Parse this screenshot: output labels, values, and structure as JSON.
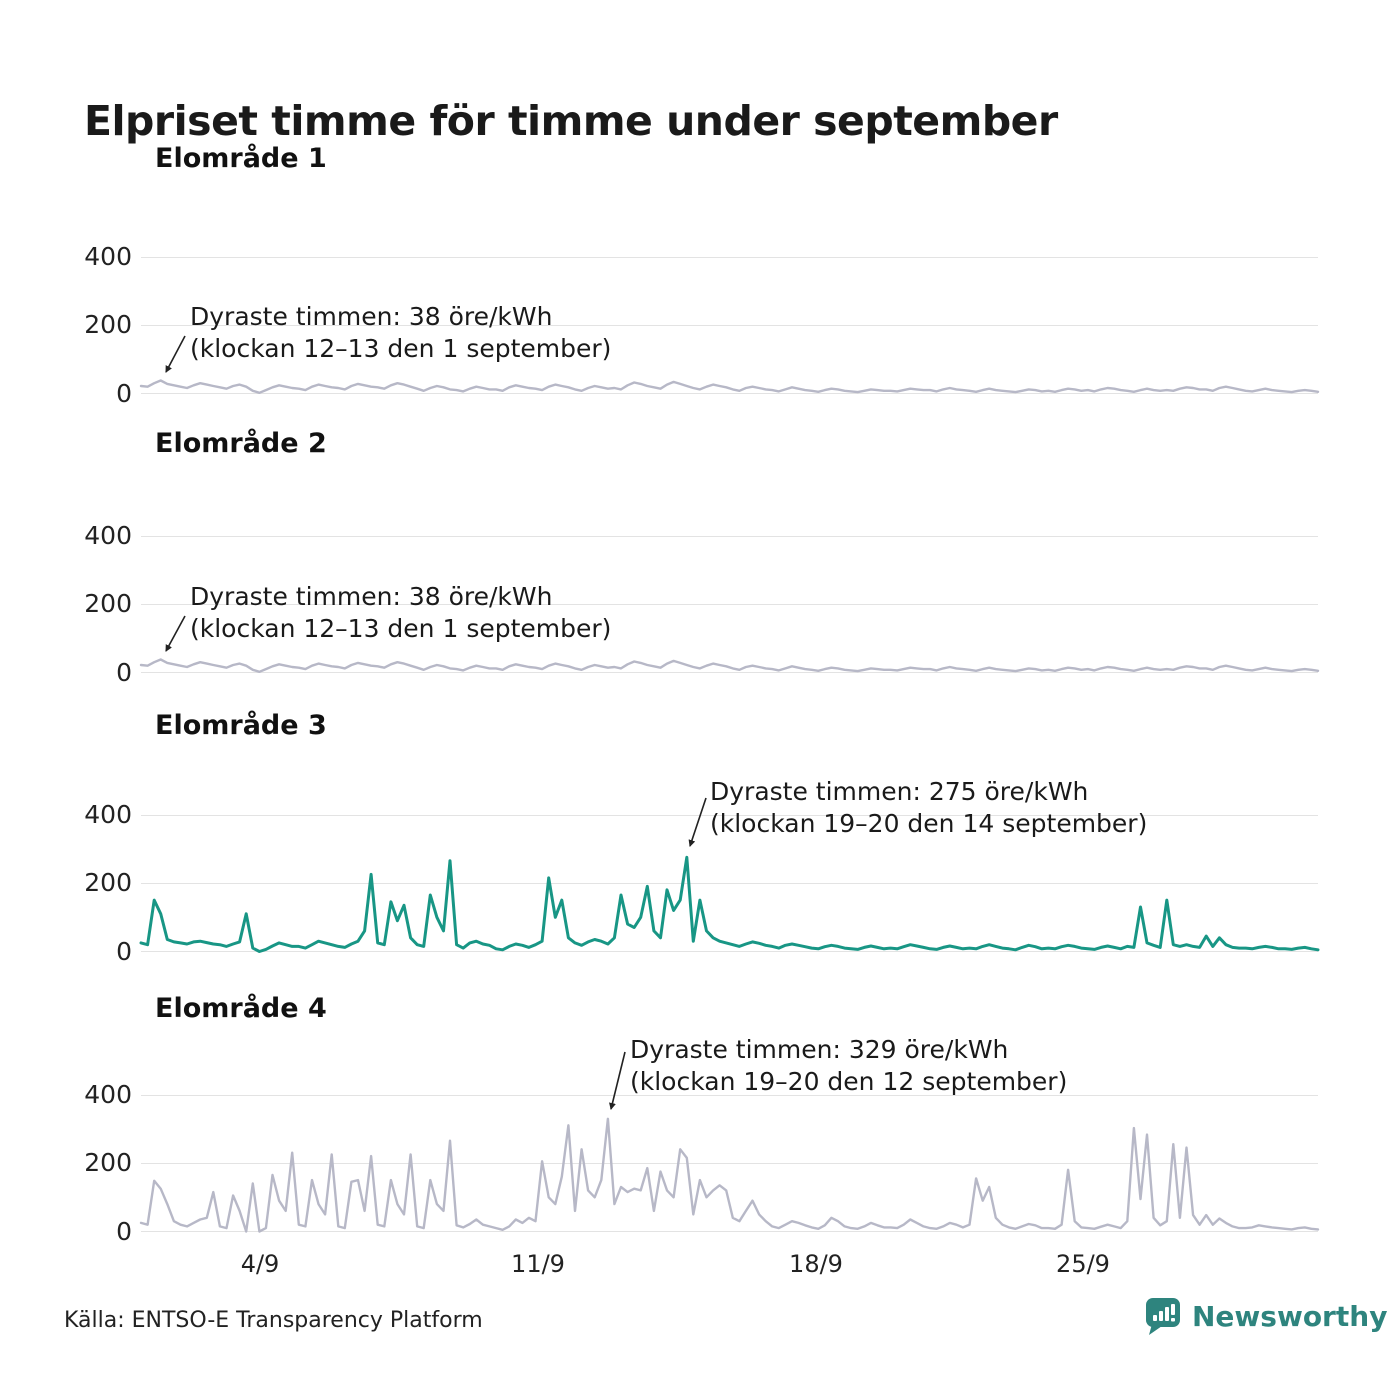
{
  "title": "Elpriset timme för timme under september",
  "source": "Källa: ENTSO-E Transparency Platform",
  "brand": {
    "name": "Newsworthy",
    "color": "#2e847e"
  },
  "colors": {
    "muted_line": "#b7b8c7",
    "highlight_line": "#189685",
    "gridline": "#e3e3e3",
    "text": "#1a1a1a"
  },
  "axis": {
    "y_tick_labels": [
      "0",
      "200",
      "400"
    ],
    "x_tick_labels": [
      "4/9",
      "11/9",
      "18/9",
      "25/9"
    ]
  },
  "chart_data": [
    {
      "type": "line",
      "title": "Elområde 1",
      "color": "#b7b8c7",
      "unit": "öre/kWh",
      "x_range": "1–30 september, hourly",
      "x_tick_labels": [
        "4/9",
        "11/9",
        "18/9",
        "25/9"
      ],
      "y_ticks": [
        0,
        200,
        400
      ],
      "ylim": [
        0,
        480
      ],
      "grid": true,
      "max": {
        "value_ore_kwh": 38,
        "time": "klockan 12–13 den 1 september"
      },
      "annotation": {
        "line1": "Dyraste timmen: 38 öre/kWh",
        "line2": "(klockan 12–13 den 1 september)"
      },
      "points_per_day": 6,
      "values": [
        22,
        20,
        30,
        38,
        28,
        24,
        20,
        16,
        24,
        30,
        26,
        22,
        18,
        14,
        22,
        26,
        20,
        8,
        2,
        10,
        18,
        24,
        20,
        16,
        14,
        10,
        20,
        26,
        22,
        18,
        16,
        12,
        22,
        28,
        24,
        20,
        18,
        14,
        24,
        30,
        26,
        20,
        14,
        8,
        16,
        22,
        18,
        12,
        10,
        6,
        14,
        20,
        16,
        12,
        12,
        8,
        18,
        24,
        20,
        16,
        14,
        10,
        20,
        26,
        22,
        18,
        12,
        8,
        16,
        22,
        18,
        14,
        16,
        12,
        24,
        32,
        28,
        22,
        18,
        14,
        26,
        34,
        28,
        22,
        16,
        12,
        20,
        26,
        22,
        18,
        12,
        8,
        16,
        20,
        16,
        12,
        10,
        6,
        12,
        18,
        14,
        10,
        8,
        5,
        10,
        14,
        12,
        8,
        6,
        4,
        8,
        12,
        10,
        8,
        8,
        6,
        10,
        14,
        12,
        10,
        10,
        6,
        12,
        16,
        12,
        10,
        8,
        5,
        10,
        14,
        10,
        8,
        6,
        4,
        8,
        12,
        10,
        6,
        8,
        5,
        10,
        14,
        12,
        8,
        10,
        6,
        12,
        16,
        14,
        10,
        8,
        5,
        10,
        14,
        10,
        8,
        10,
        8,
        14,
        18,
        16,
        12,
        12,
        8,
        16,
        20,
        16,
        12,
        8,
        6,
        10,
        14,
        10,
        8,
        6,
        4,
        8,
        10,
        8,
        5
      ]
    },
    {
      "type": "line",
      "title": "Elområde 2",
      "color": "#b7b8c7",
      "unit": "öre/kWh",
      "x_range": "1–30 september, hourly",
      "x_tick_labels": [
        "4/9",
        "11/9",
        "18/9",
        "25/9"
      ],
      "y_ticks": [
        0,
        200,
        400
      ],
      "ylim": [
        0,
        480
      ],
      "grid": true,
      "max": {
        "value_ore_kwh": 38,
        "time": "klockan 12–13 den 1 september"
      },
      "annotation": {
        "line1": "Dyraste timmen: 38 öre/kWh",
        "line2": "(klockan 12–13 den 1 september)"
      },
      "points_per_day": 6,
      "values": [
        22,
        20,
        30,
        38,
        28,
        24,
        20,
        16,
        24,
        30,
        26,
        22,
        18,
        14,
        22,
        26,
        20,
        8,
        2,
        10,
        18,
        24,
        20,
        16,
        14,
        10,
        20,
        26,
        22,
        18,
        16,
        12,
        22,
        28,
        24,
        20,
        18,
        14,
        24,
        30,
        26,
        20,
        14,
        8,
        16,
        22,
        18,
        12,
        10,
        6,
        14,
        20,
        16,
        12,
        12,
        8,
        18,
        24,
        20,
        16,
        14,
        10,
        20,
        26,
        22,
        18,
        12,
        8,
        16,
        22,
        18,
        14,
        16,
        12,
        24,
        32,
        28,
        22,
        18,
        14,
        26,
        34,
        28,
        22,
        16,
        12,
        20,
        26,
        22,
        18,
        12,
        8,
        16,
        20,
        16,
        12,
        10,
        6,
        12,
        18,
        14,
        10,
        8,
        5,
        10,
        14,
        12,
        8,
        6,
        4,
        8,
        12,
        10,
        8,
        8,
        6,
        10,
        14,
        12,
        10,
        10,
        6,
        12,
        16,
        12,
        10,
        8,
        5,
        10,
        14,
        10,
        8,
        6,
        4,
        8,
        12,
        10,
        6,
        8,
        5,
        10,
        14,
        12,
        8,
        10,
        6,
        12,
        16,
        14,
        10,
        8,
        5,
        10,
        14,
        10,
        8,
        10,
        8,
        14,
        18,
        16,
        12,
        12,
        8,
        16,
        20,
        16,
        12,
        8,
        6,
        10,
        14,
        10,
        8,
        6,
        4,
        8,
        10,
        8,
        5
      ]
    },
    {
      "type": "line",
      "title": "Elområde 3",
      "color": "#189685",
      "unit": "öre/kWh",
      "x_range": "1–30 september, hourly",
      "x_tick_labels": [
        "4/9",
        "11/9",
        "18/9",
        "25/9"
      ],
      "y_ticks": [
        0,
        200,
        400
      ],
      "ylim": [
        0,
        480
      ],
      "grid": true,
      "max": {
        "value_ore_kwh": 275,
        "time": "klockan 19–20 den 14 september"
      },
      "annotation": {
        "line1": "Dyraste timmen: 275 öre/kWh",
        "line2": "(klockan 19–20 den 14 september)"
      },
      "points_per_day": 6,
      "values": [
        25,
        20,
        150,
        110,
        35,
        28,
        25,
        22,
        28,
        30,
        26,
        22,
        20,
        15,
        22,
        28,
        110,
        10,
        0,
        6,
        16,
        25,
        20,
        15,
        15,
        10,
        20,
        30,
        25,
        20,
        15,
        12,
        22,
        30,
        60,
        225,
        25,
        20,
        145,
        90,
        135,
        40,
        20,
        15,
        165,
        100,
        60,
        265,
        20,
        10,
        25,
        30,
        22,
        18,
        8,
        5,
        15,
        22,
        18,
        12,
        20,
        30,
        215,
        100,
        150,
        40,
        25,
        18,
        28,
        35,
        30,
        22,
        40,
        165,
        80,
        70,
        100,
        190,
        60,
        40,
        180,
        120,
        150,
        275,
        30,
        150,
        60,
        40,
        30,
        25,
        20,
        15,
        22,
        28,
        24,
        18,
        15,
        10,
        18,
        22,
        18,
        14,
        10,
        8,
        14,
        18,
        15,
        10,
        8,
        6,
        12,
        16,
        12,
        8,
        10,
        8,
        14,
        20,
        16,
        12,
        8,
        6,
        12,
        16,
        12,
        8,
        10,
        8,
        15,
        20,
        15,
        10,
        8,
        5,
        12,
        18,
        14,
        8,
        10,
        8,
        14,
        18,
        15,
        10,
        8,
        6,
        12,
        16,
        12,
        8,
        15,
        12,
        130,
        25,
        18,
        12,
        150,
        20,
        15,
        20,
        15,
        12,
        45,
        15,
        40,
        20,
        12,
        10,
        10,
        8,
        12,
        15,
        12,
        8,
        8,
        6,
        10,
        12,
        8,
        5
      ]
    },
    {
      "type": "line",
      "title": "Elområde 4",
      "color": "#b7b8c7",
      "unit": "öre/kWh",
      "x_range": "1–30 september, hourly",
      "x_tick_labels": [
        "4/9",
        "11/9",
        "18/9",
        "25/9"
      ],
      "y_ticks": [
        0,
        200,
        400
      ],
      "ylim": [
        0,
        480
      ],
      "grid": true,
      "max": {
        "value_ore_kwh": 329,
        "time": "klockan 19–20 den 12 september"
      },
      "annotation": {
        "line1": "Dyraste timmen: 329 öre/kWh",
        "line2": "(klockan 19–20 den 12 september)"
      },
      "points_per_day": 6,
      "values": [
        25,
        20,
        148,
        125,
        80,
        30,
        20,
        15,
        25,
        35,
        40,
        115,
        15,
        10,
        105,
        60,
        0,
        140,
        0,
        10,
        165,
        90,
        60,
        230,
        20,
        15,
        150,
        80,
        50,
        225,
        15,
        10,
        145,
        150,
        60,
        220,
        20,
        15,
        150,
        80,
        50,
        225,
        15,
        10,
        150,
        80,
        60,
        265,
        18,
        12,
        22,
        35,
        20,
        15,
        10,
        5,
        15,
        35,
        25,
        40,
        30,
        205,
        100,
        80,
        160,
        310,
        60,
        240,
        120,
        100,
        150,
        329,
        80,
        130,
        115,
        125,
        120,
        185,
        60,
        175,
        120,
        100,
        240,
        215,
        50,
        150,
        100,
        120,
        135,
        120,
        40,
        30,
        60,
        90,
        50,
        30,
        15,
        10,
        20,
        30,
        25,
        18,
        12,
        8,
        18,
        40,
        30,
        15,
        10,
        8,
        15,
        25,
        18,
        12,
        12,
        10,
        20,
        35,
        25,
        15,
        10,
        8,
        15,
        25,
        20,
        12,
        20,
        155,
        90,
        130,
        40,
        20,
        12,
        8,
        15,
        22,
        18,
        10,
        10,
        8,
        20,
        180,
        30,
        12,
        10,
        8,
        14,
        20,
        15,
        10,
        30,
        302,
        95,
        283,
        40,
        18,
        30,
        255,
        40,
        245,
        48,
        20,
        48,
        20,
        38,
        25,
        15,
        10,
        10,
        12,
        18,
        15,
        12,
        10,
        8,
        6,
        10,
        12,
        8,
        6
      ]
    }
  ]
}
